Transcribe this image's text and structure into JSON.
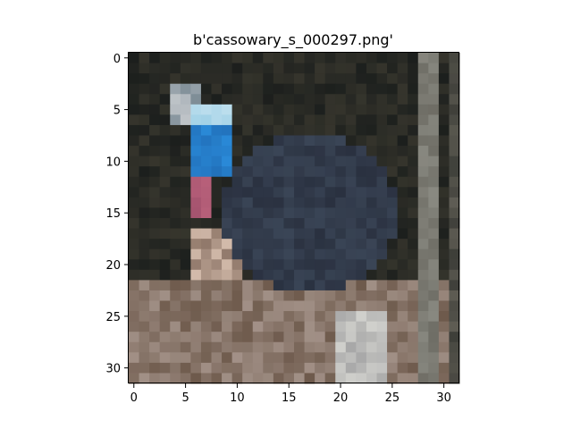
{
  "figure": {
    "title": "b'cassowary_s_000297.png'"
  },
  "image": {
    "subject": "cassowary",
    "grid_size": [
      32,
      32
    ]
  },
  "axes": {
    "x_ticks": [
      "0",
      "5",
      "10",
      "15",
      "20",
      "25",
      "30"
    ],
    "y_ticks": [
      "0",
      "5",
      "10",
      "15",
      "20",
      "25",
      "30"
    ]
  },
  "palette": {
    "background_dark": "#1c1f1d",
    "body_dark": "#2a3140",
    "body_mid": "#3a4556",
    "neck_blue": "#2a8ad8",
    "neck_light": "#9fd0e6",
    "wattle_pink": "#b8607a",
    "ground_brown": "#6e5a4c",
    "ground_light": "#b8a8a0",
    "post_gray": "#8a8a82"
  }
}
